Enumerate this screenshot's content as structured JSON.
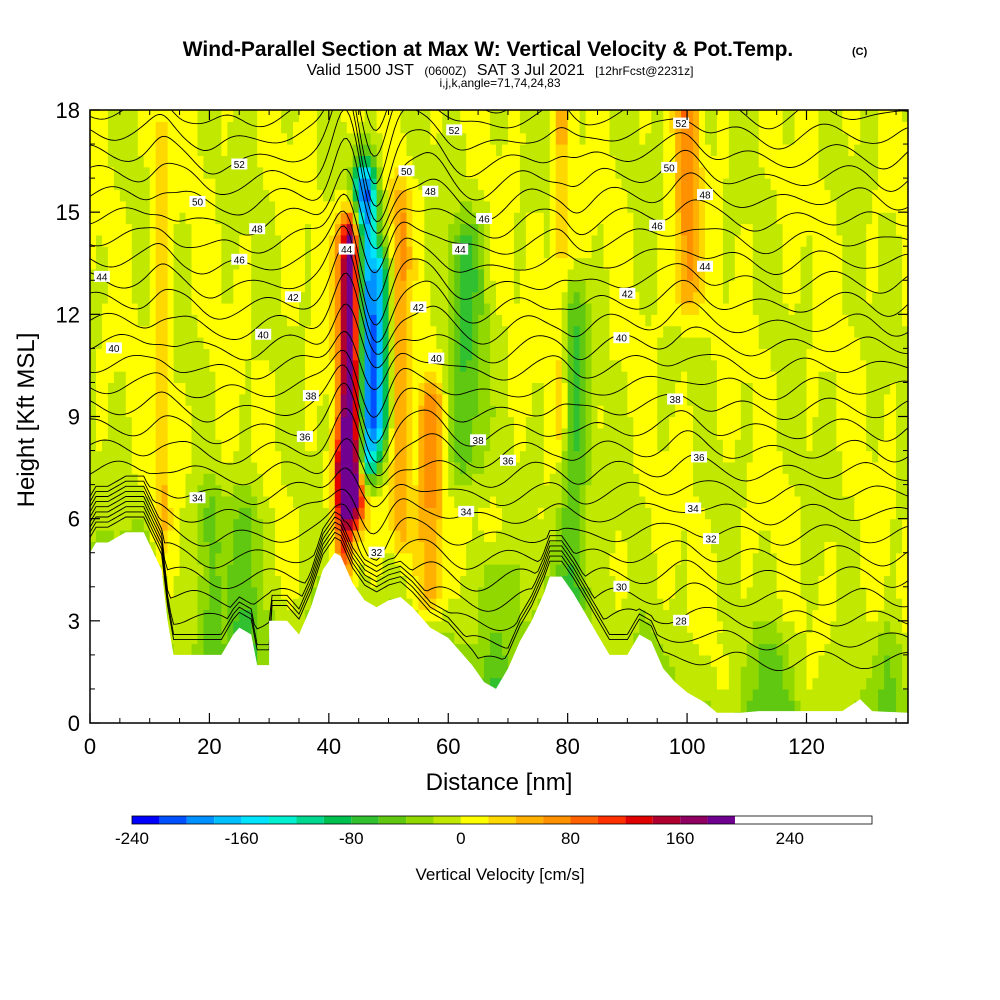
{
  "title": {
    "main": "Wind-Parallel Section at Max W: Vertical Velocity & Pot.Temp.",
    "copyright": "(C)",
    "valid_prefix": "Valid 1500 JST",
    "valid_utc": "(0600Z)",
    "valid_date": "SAT 3 Jul 2021",
    "forecast_note": "[12hrFcst@2231z]",
    "indices": "i,j,k,angle=71,74,24,83"
  },
  "chart_data": {
    "type": "heatmap",
    "xlabel": "Distance [nm]",
    "ylabel": "Height [Kft MSL]",
    "xlim": [
      0,
      137
    ],
    "ylim": [
      0,
      18
    ],
    "xticks": [
      0,
      20,
      40,
      60,
      80,
      100,
      120
    ],
    "yticks": [
      0,
      3,
      6,
      9,
      12,
      15,
      18
    ],
    "colorbar": {
      "label": "Vertical Velocity [cm/s]",
      "min": -240,
      "max": 300,
      "step": 20,
      "ticks": [
        -240,
        -160,
        -80,
        0,
        80,
        160,
        240
      ],
      "colors": [
        "#0000ff",
        "#0050ff",
        "#0090ff",
        "#00c0ff",
        "#00e4ff",
        "#00f0d0",
        "#00d890",
        "#00c050",
        "#30c030",
        "#60c810",
        "#90d800",
        "#c0e800",
        "#ffff00",
        "#ffd800",
        "#ffb000",
        "#ff9000",
        "#ff6000",
        "#ff3000",
        "#e00000",
        "#b00030",
        "#900060",
        "#700090"
      ]
    },
    "terrain": [
      [
        0,
        5
      ],
      [
        1,
        5.3
      ],
      [
        3,
        5.3
      ],
      [
        6,
        5.6
      ],
      [
        9,
        5.6
      ],
      [
        12,
        4.5
      ],
      [
        13,
        3
      ],
      [
        14,
        2
      ],
      [
        22,
        2
      ],
      [
        24,
        2.6
      ],
      [
        25,
        2.8
      ],
      [
        27,
        2.6
      ],
      [
        28,
        1.7
      ],
      [
        30,
        1.7
      ],
      [
        30,
        3
      ],
      [
        33,
        3
      ],
      [
        35,
        2.6
      ],
      [
        37,
        3.4
      ],
      [
        39,
        4.5
      ],
      [
        41,
        5
      ],
      [
        42,
        4.9
      ],
      [
        44,
        4.1
      ],
      [
        46,
        3.6
      ],
      [
        48,
        3.4
      ],
      [
        50,
        3.6
      ],
      [
        52,
        3.7
      ],
      [
        54,
        3.4
      ],
      [
        57,
        2.8
      ],
      [
        60,
        2.5
      ],
      [
        62,
        2.1
      ],
      [
        64,
        1.7
      ],
      [
        66,
        1.2
      ],
      [
        68,
        1
      ],
      [
        70,
        1.6
      ],
      [
        72,
        2.4
      ],
      [
        74,
        3
      ],
      [
        76,
        3.8
      ],
      [
        77,
        4.3
      ],
      [
        79,
        4.3
      ],
      [
        81,
        3.8
      ],
      [
        83,
        3.2
      ],
      [
        85,
        2.6
      ],
      [
        87,
        2
      ],
      [
        90,
        2
      ],
      [
        92,
        2.6
      ],
      [
        94,
        2.4
      ],
      [
        96,
        1.6
      ],
      [
        98,
        1.2
      ],
      [
        100,
        0.9
      ],
      [
        103,
        0.6
      ],
      [
        105,
        0.3
      ],
      [
        109,
        0.3
      ],
      [
        112,
        0.35
      ],
      [
        120,
        0.35
      ],
      [
        126,
        0.35
      ],
      [
        129,
        0.7
      ],
      [
        131,
        0.35
      ],
      [
        137,
        0.3
      ]
    ],
    "wbands": [
      {
        "x": 44,
        "sigma": 1.5,
        "ylo": 7,
        "yhi": 14,
        "amp": 260
      },
      {
        "x": 46,
        "sigma": 1.4,
        "ylo": 8,
        "yhi": 15.5,
        "amp": -230
      },
      {
        "x": 48.5,
        "sigma": 1.2,
        "ylo": 9,
        "yhi": 13,
        "amp": -120
      },
      {
        "x": 42.5,
        "sigma": 1.2,
        "ylo": 4.5,
        "yhi": 7.5,
        "amp": 110
      },
      {
        "x": 57,
        "sigma": 1.6,
        "ylo": 4,
        "yhi": 9,
        "amp": 70
      },
      {
        "x": 52,
        "sigma": 1.2,
        "ylo": 6,
        "yhi": 15,
        "amp": 60
      },
      {
        "x": 63,
        "sigma": 2.2,
        "ylo": 8,
        "yhi": 14,
        "amp": -60
      },
      {
        "x": 81,
        "sigma": 1.7,
        "ylo": 4,
        "yhi": 12,
        "amp": -60
      },
      {
        "x": 79,
        "sigma": 1.0,
        "ylo": 9,
        "yhi": 18,
        "amp": 40
      },
      {
        "x": 100,
        "sigma": 1.5,
        "ylo": 13,
        "yhi": 18,
        "amp": 70
      },
      {
        "x": 12,
        "sigma": 1.0,
        "ylo": 6,
        "yhi": 17,
        "amp": 40
      },
      {
        "x": 20,
        "sigma": 1.5,
        "ylo": 2,
        "yhi": 6,
        "amp": -45
      },
      {
        "x": 26,
        "sigma": 2.0,
        "ylo": 2.5,
        "yhi": 6,
        "amp": -50
      },
      {
        "x": 68,
        "sigma": 2.0,
        "ylo": 1,
        "yhi": 4,
        "amp": -45
      },
      {
        "x": 114,
        "sigma": 2.5,
        "ylo": 0.3,
        "yhi": 2,
        "amp": -40
      },
      {
        "x": 134,
        "sigma": 1.5,
        "ylo": 0.3,
        "yhi": 2,
        "amp": -40
      }
    ],
    "contour_labels": [
      {
        "text": "52",
        "x": 25,
        "y": 16.4
      },
      {
        "text": "50",
        "x": 18,
        "y": 15.3
      },
      {
        "text": "48",
        "x": 28,
        "y": 14.5
      },
      {
        "text": "46",
        "x": 25,
        "y": 13.6
      },
      {
        "text": "44",
        "x": 2,
        "y": 13.1
      },
      {
        "text": "42",
        "x": 34,
        "y": 12.5
      },
      {
        "text": "40",
        "x": 29,
        "y": 11.4
      },
      {
        "text": "40",
        "x": 4,
        "y": 11.0
      },
      {
        "text": "38",
        "x": 37,
        "y": 9.6
      },
      {
        "text": "36",
        "x": 36,
        "y": 8.4
      },
      {
        "text": "34",
        "x": 18,
        "y": 6.6
      },
      {
        "text": "44",
        "x": 43,
        "y": 13.9
      },
      {
        "text": "52",
        "x": 61,
        "y": 17.4
      },
      {
        "text": "50",
        "x": 53,
        "y": 16.2
      },
      {
        "text": "48",
        "x": 57,
        "y": 15.6
      },
      {
        "text": "46",
        "x": 66,
        "y": 14.8
      },
      {
        "text": "44",
        "x": 62,
        "y": 13.9
      },
      {
        "text": "42",
        "x": 55,
        "y": 12.2
      },
      {
        "text": "40",
        "x": 58,
        "y": 10.7
      },
      {
        "text": "38",
        "x": 65,
        "y": 8.3
      },
      {
        "text": "36",
        "x": 70,
        "y": 7.7
      },
      {
        "text": "34",
        "x": 63,
        "y": 6.2
      },
      {
        "text": "32",
        "x": 48,
        "y": 5.0
      },
      {
        "text": "52",
        "x": 99,
        "y": 17.6
      },
      {
        "text": "50",
        "x": 97,
        "y": 16.3
      },
      {
        "text": "48",
        "x": 103,
        "y": 15.5
      },
      {
        "text": "46",
        "x": 95,
        "y": 14.6
      },
      {
        "text": "44",
        "x": 103,
        "y": 13.4
      },
      {
        "text": "42",
        "x": 90,
        "y": 12.6
      },
      {
        "text": "40",
        "x": 89,
        "y": 11.3
      },
      {
        "text": "38",
        "x": 98,
        "y": 9.5
      },
      {
        "text": "36",
        "x": 102,
        "y": 7.8
      },
      {
        "text": "34",
        "x": 101,
        "y": 6.3
      },
      {
        "text": "32",
        "x": 104,
        "y": 5.4
      },
      {
        "text": "30",
        "x": 89,
        "y": 4.0
      },
      {
        "text": "28",
        "x": 99,
        "y": 3.0
      }
    ]
  }
}
